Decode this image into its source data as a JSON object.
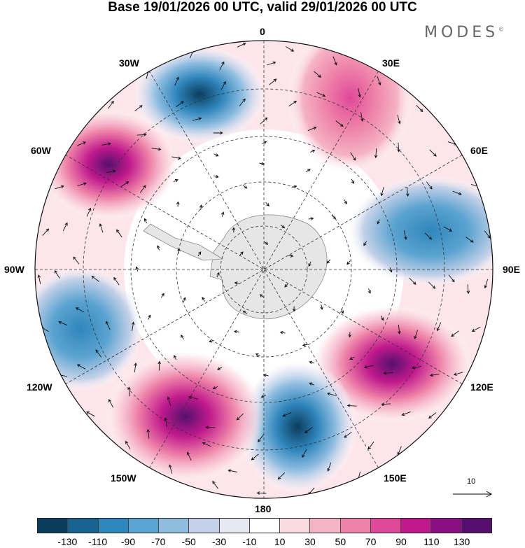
{
  "title": "Base 19/01/2026 00 UTC, valid 29/01/2026 00 UTC",
  "logo": "MODES",
  "logo_mark": "©",
  "longitude_labels": {
    "lon_0": "0",
    "lon_30e": "30E",
    "lon_60e": "60E",
    "lon_90e": "90E",
    "lon_120e": "120E",
    "lon_150e": "150E",
    "lon_180": "180",
    "lon_150w": "150W",
    "lon_120w": "120W",
    "lon_90w": "90W",
    "lon_60w": "60W",
    "lon_30w": "30W"
  },
  "reference_vector": "10",
  "colorbar": {
    "colors": [
      "#0b3c5d",
      "#17628f",
      "#2f86bc",
      "#5ba3d0",
      "#8fbde0",
      "#c4d1e8",
      "#e8e8f3",
      "#ffffff",
      "#fbdbe3",
      "#f5b3c6",
      "#ee82a8",
      "#e0489a",
      "#c0198c",
      "#8a0f85",
      "#55106e"
    ],
    "tick_labels": [
      "-130",
      "-110",
      "-90",
      "-70",
      "-50",
      "-30",
      "-10",
      "10",
      "30",
      "50",
      "70",
      "90",
      "110",
      "130"
    ]
  },
  "chart_data": {
    "type": "heatmap",
    "projection": "south polar stereographic",
    "title": "Base 19/01/2026 00 UTC, valid 29/01/2026 00 UTC",
    "field": "anomaly contours with wind vectors",
    "levels": [
      -130,
      -110,
      -90,
      -70,
      -50,
      -30,
      -10,
      10,
      30,
      50,
      70,
      90,
      110,
      130
    ],
    "centers": [
      {
        "lon_deg": -25,
        "sign": "negative",
        "peak": -90
      },
      {
        "lon_deg": 20,
        "sign": "positive",
        "peak": 70
      },
      {
        "lon_deg": -60,
        "sign": "positive",
        "peak": 110
      },
      {
        "lon_deg": 75,
        "sign": "negative",
        "peak": -70
      },
      {
        "lon_deg": -105,
        "sign": "negative",
        "peak": -70
      },
      {
        "lon_deg": 120,
        "sign": "positive",
        "peak": 90
      },
      {
        "lon_deg": 160,
        "sign": "negative",
        "peak": -110
      },
      {
        "lon_deg": -150,
        "sign": "positive",
        "peak": 130
      }
    ]
  }
}
